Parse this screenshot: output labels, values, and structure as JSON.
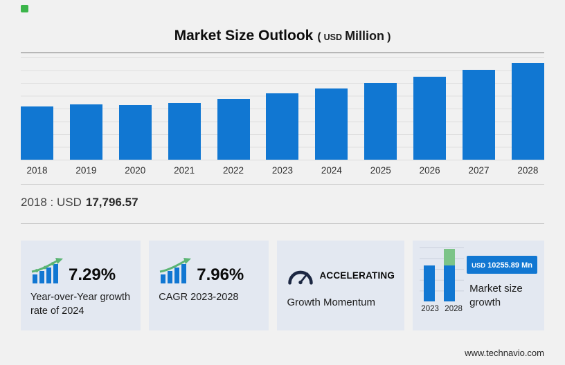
{
  "header": {
    "title": "Market Size Outlook",
    "paren_open": "(",
    "currency": "USD",
    "unit": "Million",
    "paren_close": ")"
  },
  "chart_data": [
    {
      "id": "market-size-outlook",
      "type": "bar",
      "title": "Market Size Outlook (USD Million)",
      "unit": "USD Million",
      "categories": [
        "2018",
        "2019",
        "2020",
        "2021",
        "2022",
        "2023",
        "2024",
        "2025",
        "2026",
        "2027",
        "2028"
      ],
      "values": [
        17796.57,
        18400,
        18150,
        18950,
        20300,
        21979,
        23581.3,
        25430,
        27460,
        29760,
        32234.9
      ],
      "xlabel": "",
      "ylabel": "",
      "ylim": [
        0,
        34000
      ],
      "grid": true,
      "legend": "none",
      "bar_color": "#1177d2",
      "annotation": {
        "label": "2018 : USD",
        "value": "17,796.57"
      }
    },
    {
      "id": "market-size-growth-mini",
      "type": "bar",
      "categories": [
        "2023",
        "2028"
      ],
      "values": [
        21979,
        32234.89
      ],
      "growth_value": 10255.89,
      "bar_color": "#1177d2",
      "growth_color": "#7cc488",
      "grid": true
    }
  ],
  "cards": [
    {
      "id": "yoy-growth",
      "icon": "growth-trend-icon",
      "value": "7.29%",
      "label": "Year-over-Year growth rate of 2024"
    },
    {
      "id": "cagr",
      "icon": "growth-trend-icon",
      "value": "7.96%",
      "label": "CAGR 2023-2028"
    },
    {
      "id": "momentum",
      "icon": "speedometer-icon",
      "value": "ACCELERATING",
      "label": "Growth Momentum"
    },
    {
      "id": "market-size-growth",
      "badge_currency": "USD",
      "badge_value": "10255.89 Mn",
      "label": "Market size growth"
    }
  ],
  "footer": {
    "website": "www.technavio.com"
  },
  "colors": {
    "bar_blue": "#1177d2",
    "accent_green": "#5cb574",
    "growth_cap_green": "#7cc488",
    "card_background": "#e3e8f1",
    "page_background": "#f1f1f1"
  }
}
